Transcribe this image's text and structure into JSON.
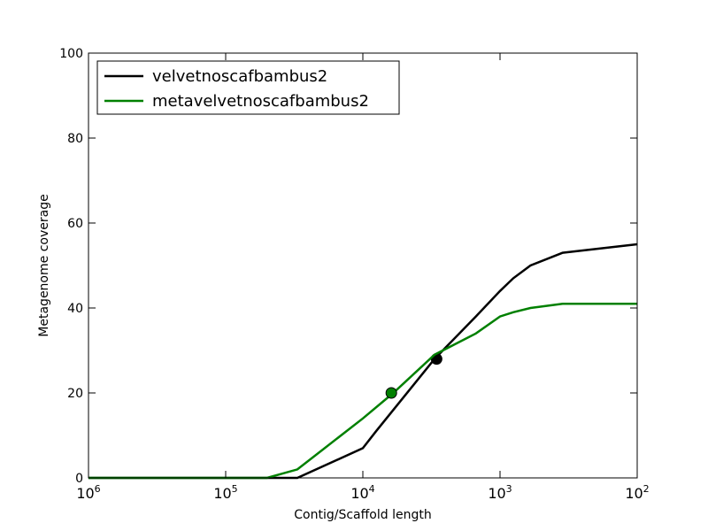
{
  "chart_data": {
    "type": "line",
    "title": "",
    "xlabel": "Contig/Scaffold length",
    "ylabel": "Metagenome coverage",
    "xscale": "log",
    "xaxis_inverted": true,
    "xlim": [
      1000000,
      100
    ],
    "ylim": [
      0,
      100
    ],
    "grid": false,
    "legend_position": "top-left",
    "x_ticks": [
      {
        "value": 1000000,
        "base": "10",
        "exp": "6"
      },
      {
        "value": 100000,
        "base": "10",
        "exp": "5"
      },
      {
        "value": 10000,
        "base": "10",
        "exp": "4"
      },
      {
        "value": 1000,
        "base": "10",
        "exp": "3"
      },
      {
        "value": 100,
        "base": "10",
        "exp": "2"
      }
    ],
    "y_ticks": [
      {
        "value": 0,
        "label": "0"
      },
      {
        "value": 20,
        "label": "20"
      },
      {
        "value": 40,
        "label": "40"
      },
      {
        "value": 60,
        "label": "60"
      },
      {
        "value": 80,
        "label": "80"
      },
      {
        "value": 100,
        "label": "100"
      }
    ],
    "series": [
      {
        "name": "velvetnoscafbambus2",
        "color": "#000000",
        "x": [
          1000000,
          30000,
          10000,
          8000,
          3000,
          1500,
          1000,
          800,
          600,
          350,
          100
        ],
        "y": [
          0,
          0,
          7,
          11,
          28,
          38,
          44,
          47,
          50,
          53,
          55
        ],
        "marker": {
          "x": 2900,
          "y": 28
        }
      },
      {
        "name": "metavelvetnoscafbambus2",
        "color": "#008000",
        "x": [
          1000000,
          50000,
          30000,
          10000,
          6000,
          3000,
          1500,
          1000,
          800,
          600,
          350,
          100
        ],
        "y": [
          0,
          0,
          2,
          14,
          20,
          29,
          34,
          38,
          39,
          40,
          41,
          41
        ],
        "marker": {
          "x": 6200,
          "y": 20
        }
      }
    ]
  }
}
